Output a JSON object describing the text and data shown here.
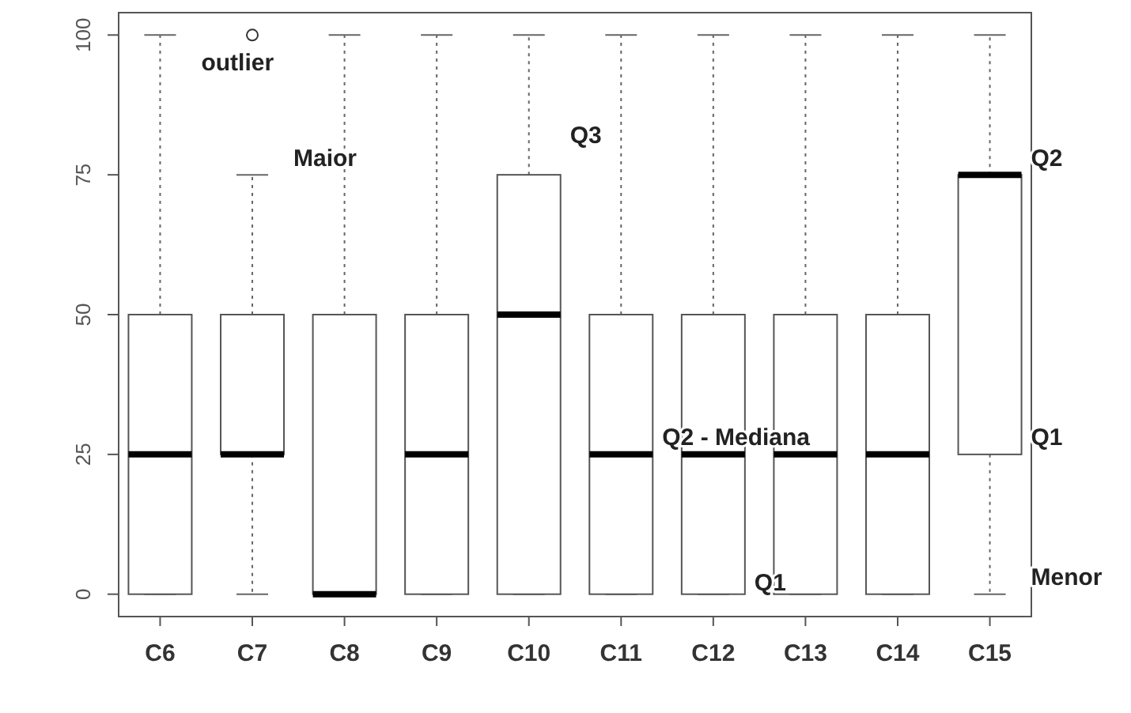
{
  "chart_data": {
    "type": "box",
    "categories": [
      "C6",
      "C7",
      "C8",
      "C9",
      "C10",
      "C11",
      "C12",
      "C13",
      "C14",
      "C15"
    ],
    "boxes": [
      {
        "low": 0,
        "q1": 0,
        "median": 25,
        "q3": 50,
        "high": 100
      },
      {
        "low": 0,
        "q1": 25,
        "median": 25,
        "q3": 50,
        "high": 75,
        "outliers": [
          100
        ]
      },
      {
        "low": 0,
        "q1": 0,
        "median": 0,
        "q3": 50,
        "high": 100
      },
      {
        "low": 0,
        "q1": 0,
        "median": 25,
        "q3": 50,
        "high": 100
      },
      {
        "low": 0,
        "q1": 0,
        "median": 50,
        "q3": 75,
        "high": 100
      },
      {
        "low": 0,
        "q1": 0,
        "median": 25,
        "q3": 50,
        "high": 100
      },
      {
        "low": 0,
        "q1": 0,
        "median": 25,
        "q3": 50,
        "high": 100
      },
      {
        "low": 0,
        "q1": 0,
        "median": 25,
        "q3": 50,
        "high": 100
      },
      {
        "low": 0,
        "q1": 0,
        "median": 25,
        "q3": 50,
        "high": 100
      },
      {
        "low": 0,
        "q1": 25,
        "median": 75,
        "q3": 75,
        "high": 100
      }
    ],
    "ylim": [
      -4,
      104
    ],
    "yticks": [
      0,
      25,
      50,
      75,
      100
    ],
    "color": "#ffffff",
    "annotations": [
      {
        "text": "outlier",
        "x": "C6",
        "y": 92
      },
      {
        "text": "Maior",
        "x": "C7",
        "y": 75
      },
      {
        "text": "Q3",
        "x": "C10",
        "y": 79
      },
      {
        "text": "Q2",
        "x": "C15",
        "y": 75
      },
      {
        "text": "Q2 - Mediana",
        "x": "C11",
        "y": 25
      },
      {
        "text": "Q1",
        "x": "C12",
        "y": -1
      },
      {
        "text": "Q1",
        "x": "C15",
        "y": 25
      },
      {
        "text": "Menor",
        "x": "C15",
        "y": 0
      }
    ]
  }
}
